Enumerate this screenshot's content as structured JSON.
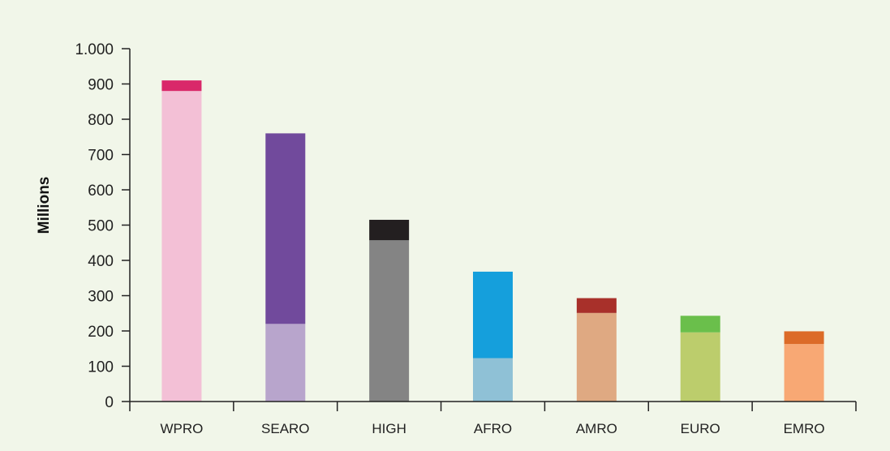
{
  "chart_data": {
    "type": "bar",
    "stacked": true,
    "title": "",
    "xlabel": "",
    "ylabel": "Millions",
    "ylim": [
      0,
      1000
    ],
    "yticks": [
      0,
      100,
      200,
      300,
      400,
      500,
      600,
      700,
      800,
      900,
      1000
    ],
    "ytick_labels": [
      "0",
      "100",
      "200",
      "300",
      "400",
      "500",
      "600",
      "700",
      "800",
      "900",
      "1.000"
    ],
    "grid": false,
    "legend": "none",
    "categories": [
      "WPRO",
      "SEARO",
      "HIGH",
      "AFRO",
      "AMRO",
      "EURO",
      "EMRO"
    ],
    "series": [
      {
        "values": [
          880,
          220,
          457,
          123,
          251,
          196,
          163
        ],
        "colors": [
          "#f3c0d6",
          "#b8a5cc",
          "#848484",
          "#8fc1d6",
          "#dfa982",
          "#bccd6c",
          "#f8a874"
        ]
      },
      {
        "values": [
          30,
          540,
          58,
          245,
          42,
          47,
          36
        ],
        "colors": [
          "#d9286a",
          "#714a9c",
          "#231f20",
          "#159fdc",
          "#a8302a",
          "#6abf4b",
          "#dc6b28"
        ]
      }
    ]
  }
}
